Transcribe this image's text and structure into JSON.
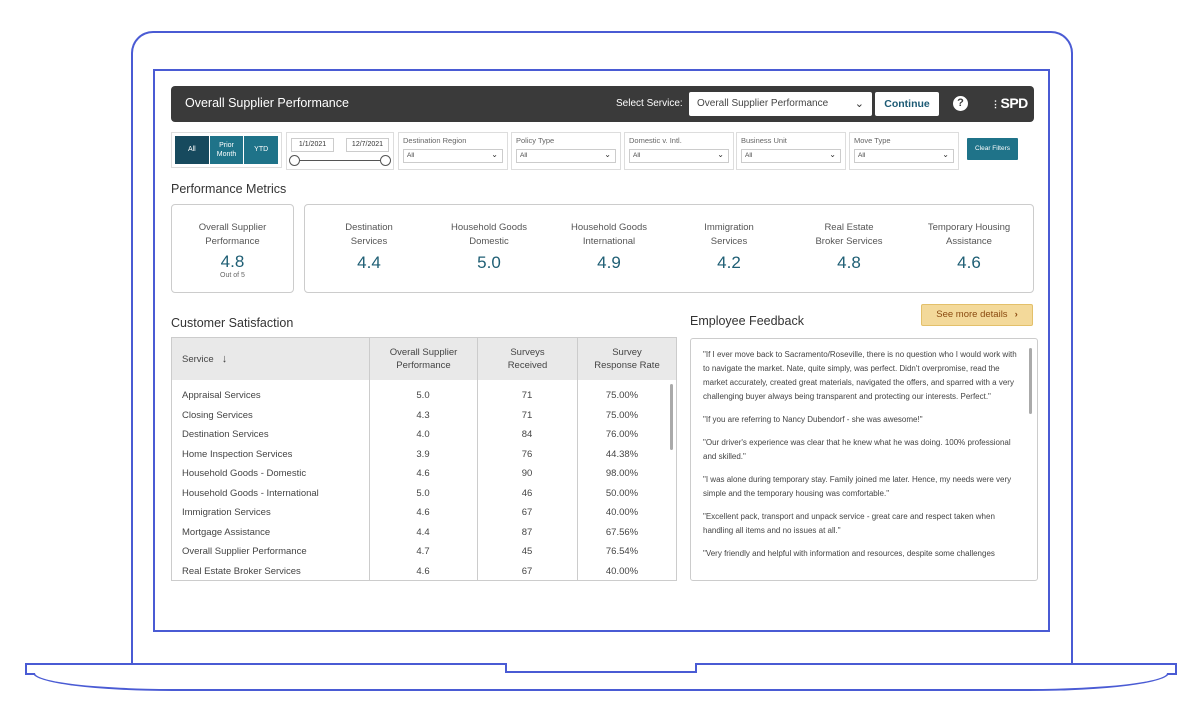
{
  "header": {
    "title": "Overall Supplier Performance",
    "select_label": "Select Service:",
    "select_value": "Overall Supplier Performance",
    "continue_label": "Continue",
    "help_label": "?",
    "logo_text": "SPD"
  },
  "period": {
    "all": "All",
    "prior_month_1": "Prior",
    "prior_month_2": "Month",
    "ytd": "YTD"
  },
  "daterange": {
    "start": "1/1/2021",
    "end": "12/7/2021"
  },
  "filters": [
    {
      "label": "Destination Region",
      "value": "All"
    },
    {
      "label": "Policy Type",
      "value": "All"
    },
    {
      "label": "Domestic v. Intl.",
      "value": "All"
    },
    {
      "label": "Business Unit",
      "value": "All"
    },
    {
      "label": "Move Type",
      "value": "All"
    }
  ],
  "clear_filters": "Clear Filters",
  "performance": {
    "title": "Performance Metrics",
    "overall": {
      "label1": "Overall Supplier",
      "label2": "Performance",
      "value": "4.8",
      "sub": "Out of 5"
    },
    "metrics": [
      {
        "label1": "Destination",
        "label2": "Services",
        "value": "4.4"
      },
      {
        "label1": "Household Goods",
        "label2": "Domestic",
        "value": "5.0"
      },
      {
        "label1": "Household Goods",
        "label2": "International",
        "value": "4.9"
      },
      {
        "label1": "Immigration",
        "label2": "Services",
        "value": "4.2"
      },
      {
        "label1": "Real Estate",
        "label2": "Broker Services",
        "value": "4.8"
      },
      {
        "label1": "Temporary Housing",
        "label2": "Assistance",
        "value": "4.6"
      }
    ]
  },
  "satisfaction": {
    "title": "Customer Satisfaction",
    "headers": {
      "service": "Service",
      "perf1": "Overall Supplier",
      "perf2": "Performance",
      "surveys1": "Surveys",
      "surveys2": "Received",
      "rate1": "Survey",
      "rate2": "Response Rate"
    },
    "rows": [
      {
        "service": "Appraisal Services",
        "perf": "5.0",
        "surveys": "71",
        "rate": "75.00%"
      },
      {
        "service": "Closing Services",
        "perf": "4.3",
        "surveys": "71",
        "rate": "75.00%"
      },
      {
        "service": "Destination Services",
        "perf": "4.0",
        "surveys": "84",
        "rate": "76.00%"
      },
      {
        "service": "Home Inspection Services",
        "perf": "3.9",
        "surveys": "76",
        "rate": "44.38%"
      },
      {
        "service": "Household Goods - Domestic",
        "perf": "4.6",
        "surveys": "90",
        "rate": "98.00%"
      },
      {
        "service": "Household Goods - International",
        "perf": "5.0",
        "surveys": "46",
        "rate": "50.00%"
      },
      {
        "service": "Immigration Services",
        "perf": "4.6",
        "surveys": "67",
        "rate": "40.00%"
      },
      {
        "service": "Mortgage Assistance",
        "perf": "4.4",
        "surveys": "87",
        "rate": "67.56%"
      },
      {
        "service": "Overall Supplier Performance",
        "perf": "4.7",
        "surveys": "45",
        "rate": "76.54%"
      },
      {
        "service": "Real Estate Broker Services",
        "perf": "4.6",
        "surveys": "67",
        "rate": "40.00%"
      }
    ]
  },
  "feedback": {
    "title": "Employee Feedback",
    "details_label": "See more details",
    "items": [
      "\"If I ever move back to Sacramento/Roseville, there is no question who I would work with to navigate the market.  Nate, quite simply, was perfect.  Didn't overpromise, read the market accurately, created great materials, navigated the offers, and sparred with a very challenging buyer always being transparent and protecting our interests.  Perfect.\"",
      "\"If you are referring to Nancy Dubendorf - she was awesome!\"",
      "\"Our driver's experience was clear that he knew what he was doing.  100% professional and skilled.\"",
      "\"I was alone during temporary stay. Family joined me later. Hence, my needs were very simple and the temporary housing was comfortable.\"",
      "\"Excellent pack, transport and unpack service - great care and respect taken when handling all items and no issues at all.\"",
      "\"Very friendly and helpful with information and resources, despite some challenges"
    ]
  },
  "colors": {
    "accent": "#1f7389",
    "accent_dark": "#174a5e",
    "frame": "#4a5bd4",
    "header": "#3a3a3a"
  }
}
